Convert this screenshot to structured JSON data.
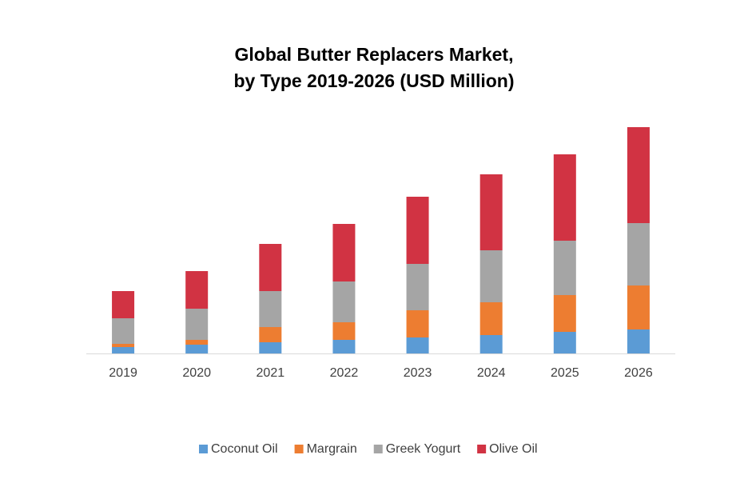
{
  "chart_data": {
    "type": "stacked_bar",
    "title": [
      "Global Butter Replacers Market,",
      "by Type 2019-2026 (USD Million)"
    ],
    "categories": [
      "2019",
      "2020",
      "2021",
      "2022",
      "2023",
      "2024",
      "2025",
      "2026"
    ],
    "series": [
      {
        "name": "Coconut Oil",
        "color": "#5b9bd5",
        "values": [
          8,
          11,
          14,
          17,
          20,
          23,
          27,
          30
        ]
      },
      {
        "name": "Margrain",
        "color": "#ed7d31",
        "values": [
          4,
          6,
          19,
          22,
          34,
          41,
          46,
          55
        ]
      },
      {
        "name": "Greek Yogurt",
        "color": "#a5a5a5",
        "values": [
          32,
          39,
          45,
          51,
          58,
          65,
          68,
          78
        ]
      },
      {
        "name": "Olive Oil",
        "color": "#d13343",
        "values": [
          34,
          47,
          59,
          72,
          84,
          95,
          108,
          120
        ]
      }
    ],
    "legend": "bottom"
  }
}
